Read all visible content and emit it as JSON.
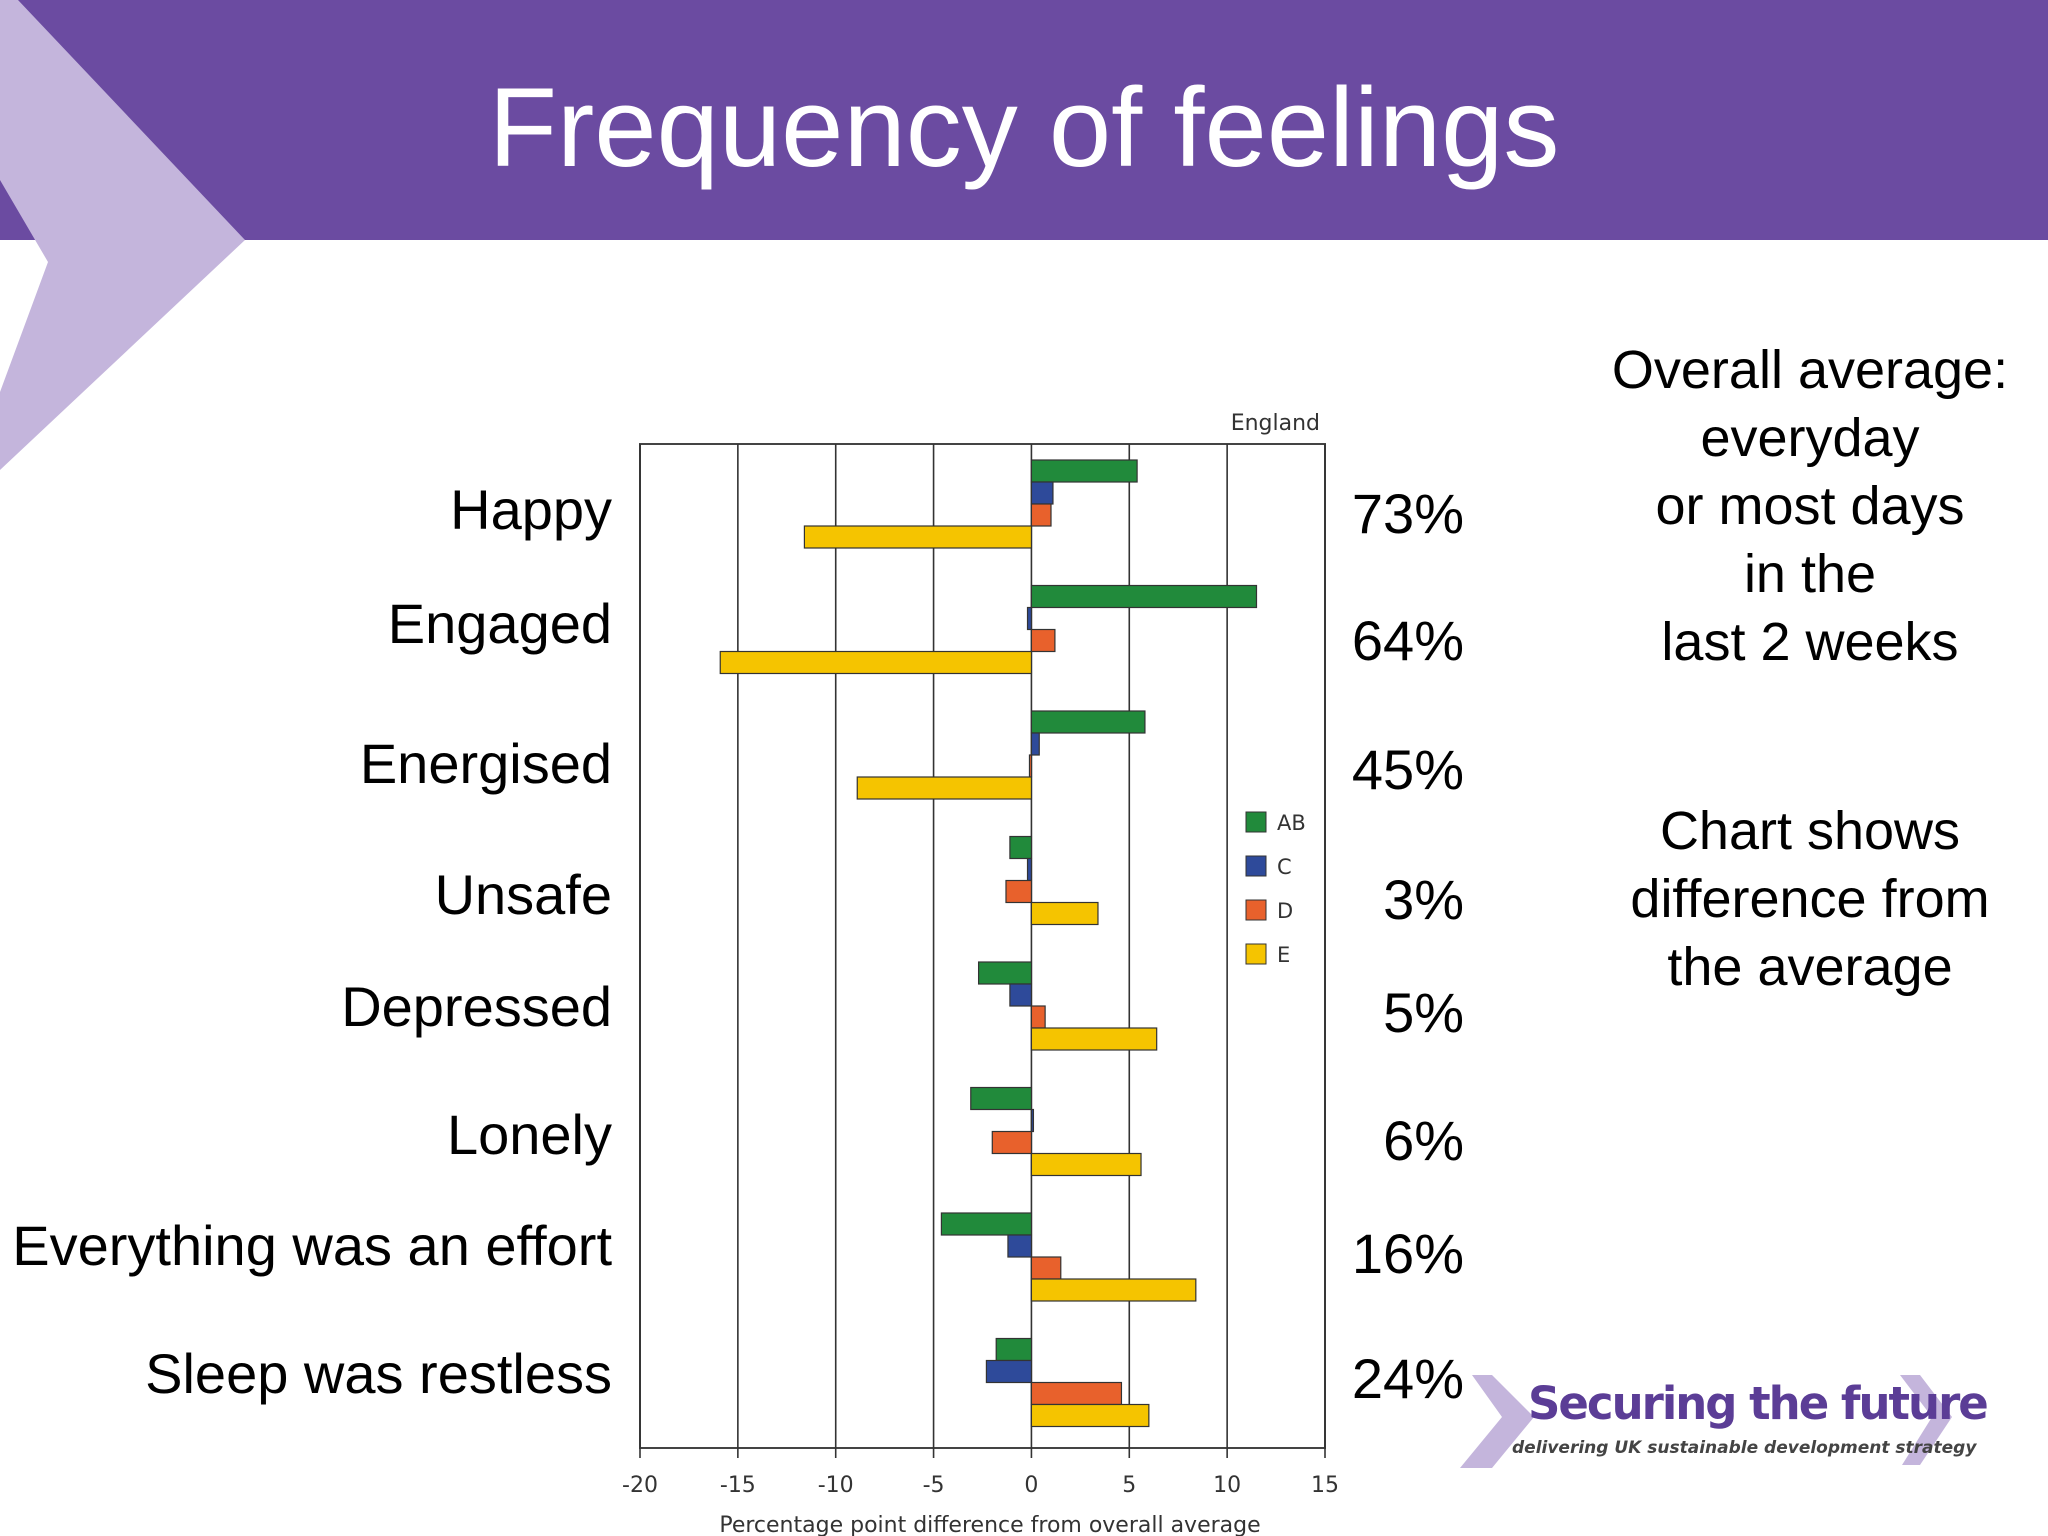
{
  "slide": {
    "title": "Frequency of feelings",
    "side_text_1": "Overall average:\neveryday\nor most days\nin the\nlast 2 weeks",
    "side_text_2": "Chart shows\ndifference from\nthe average",
    "logo": {
      "title": "Securing the future",
      "subtitle": "delivering UK sustainable development strategy"
    },
    "colors": {
      "header": "#6b4ba1",
      "chevron": "#c4b5dc",
      "logo_purple": "#5b3d96"
    }
  },
  "chart_data": {
    "type": "bar",
    "orientation": "horizontal",
    "title": "England",
    "xlabel": "Percentage point difference from overall average",
    "xlim": [
      -20,
      15
    ],
    "xticks": [
      -20,
      -15,
      -10,
      -5,
      0,
      5,
      10,
      15
    ],
    "grid": true,
    "legend_position": "right",
    "categories": [
      "Happy",
      "Engaged",
      "Energised",
      "Unsafe",
      "Depressed",
      "Lonely",
      "Everything was an effort",
      "Sleep was restless"
    ],
    "overall_average": [
      "73%",
      "64%",
      "45%",
      "3%",
      "5%",
      "6%",
      "16%",
      "24%"
    ],
    "series": [
      {
        "name": "AB",
        "color": "#218a3b",
        "values": [
          5.4,
          11.5,
          5.8,
          -1.1,
          -2.7,
          -3.1,
          -4.6,
          -1.8
        ]
      },
      {
        "name": "C",
        "color": "#2e4a9a",
        "values": [
          1.1,
          -0.2,
          0.4,
          -0.2,
          -1.1,
          0.1,
          -1.2,
          -2.3
        ]
      },
      {
        "name": "D",
        "color": "#e8612c",
        "values": [
          1.0,
          1.2,
          -0.1,
          -1.3,
          0.7,
          -2.0,
          1.5,
          4.6
        ]
      },
      {
        "name": "E",
        "color": "#f5c400",
        "values": [
          -11.6,
          -15.9,
          -8.9,
          3.4,
          6.4,
          5.6,
          8.4,
          6.0
        ]
      }
    ]
  }
}
